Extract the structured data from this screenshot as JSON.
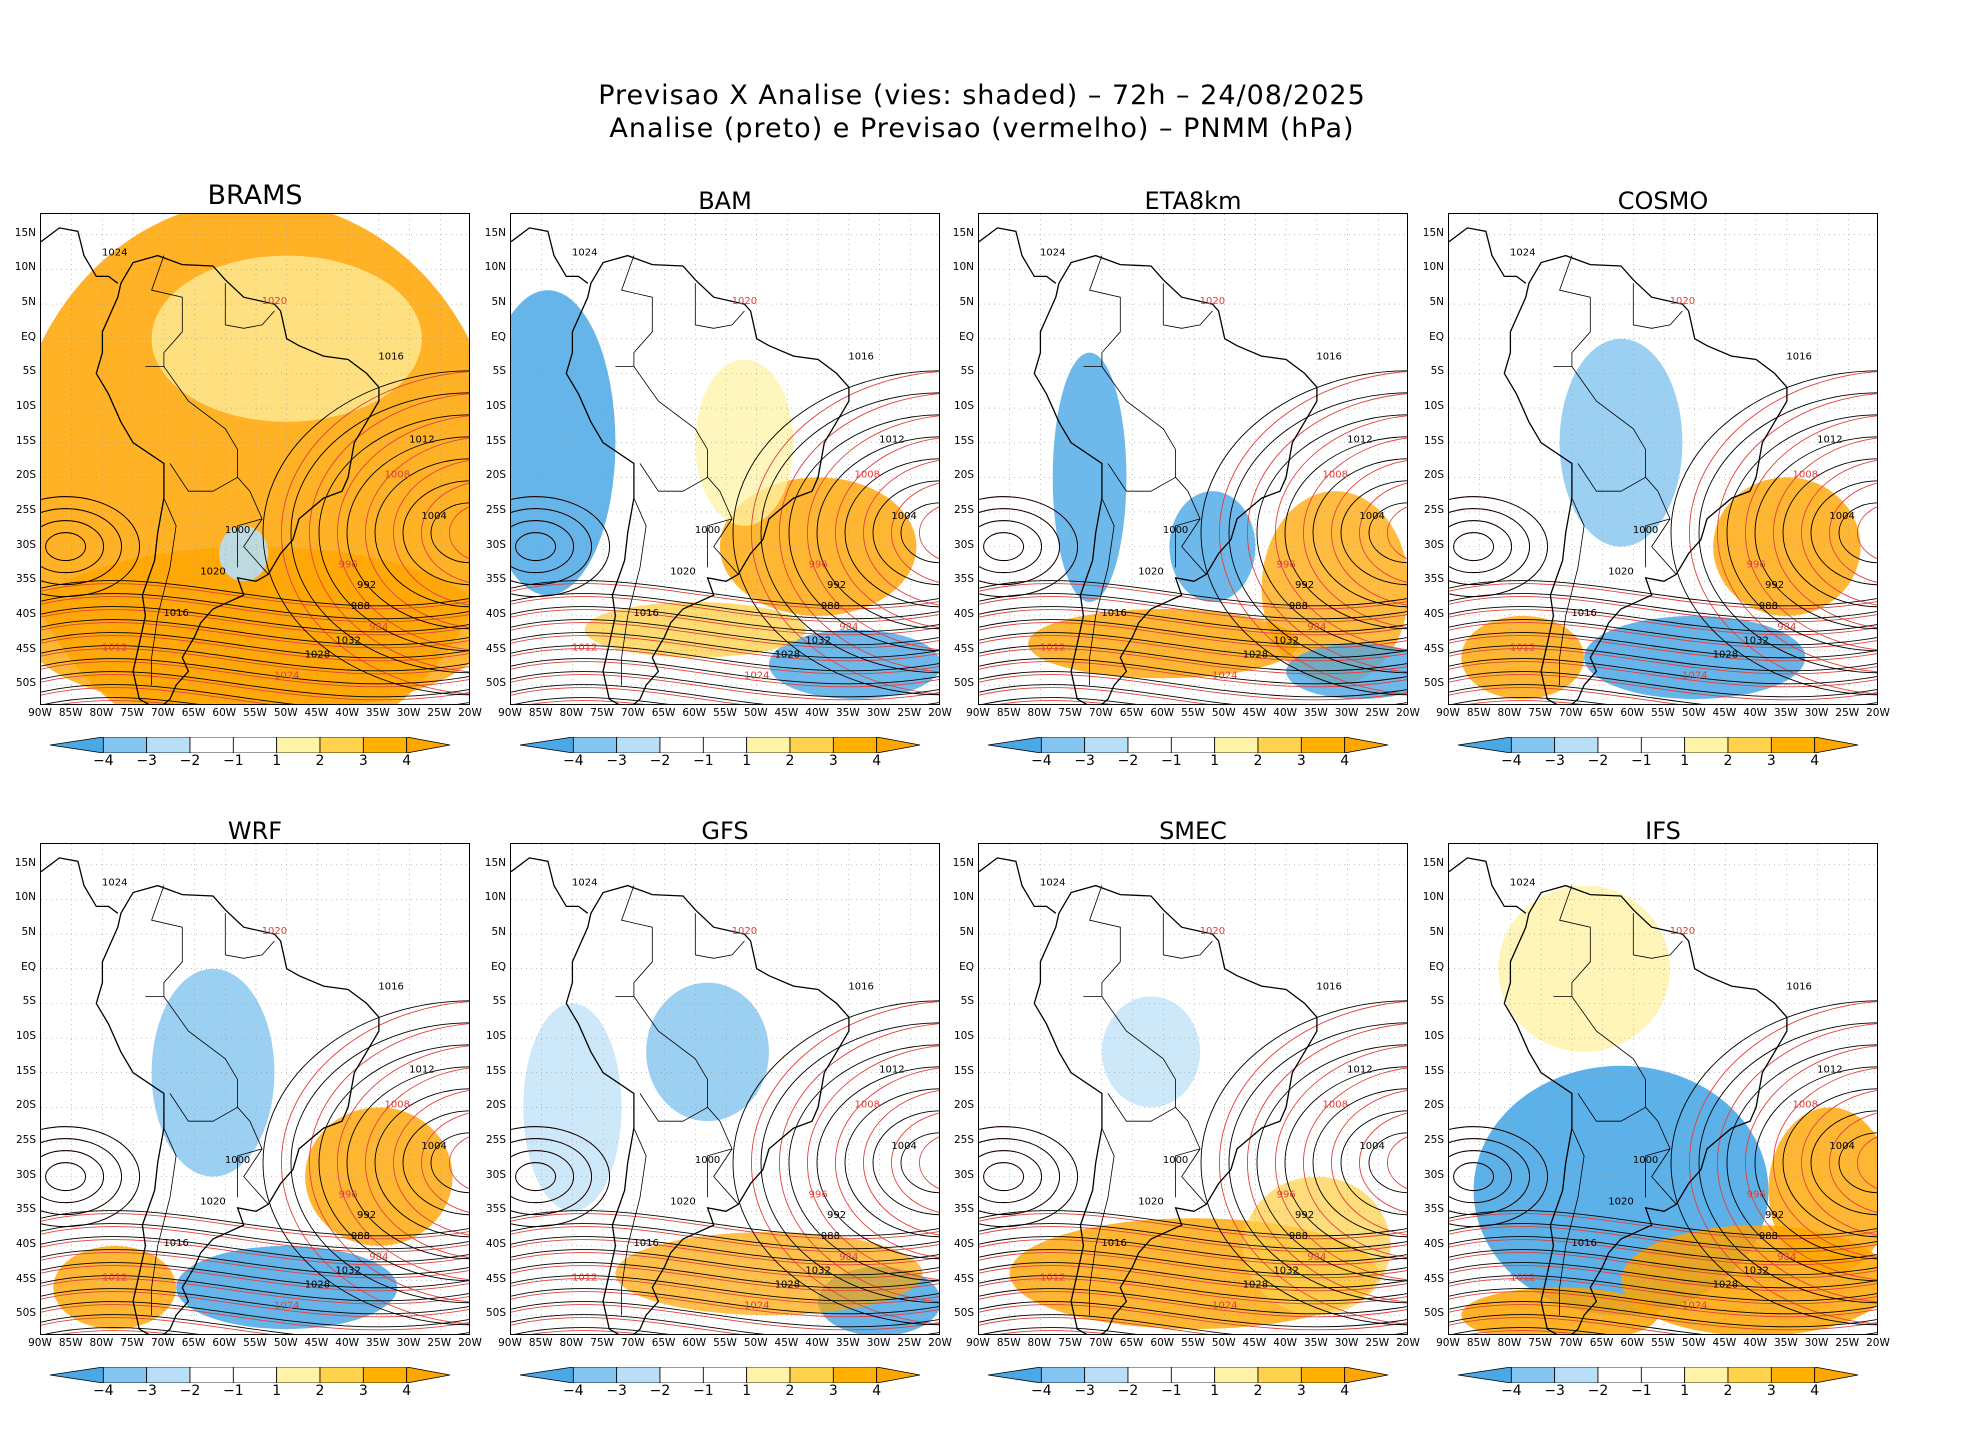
{
  "figure": {
    "title_line1": "Previsao X Analise (vies: shaded) – 72h – 24/08/2025",
    "title_line2": "Analise (preto) e Previsao (vermelho) – PNMM (hPa)"
  },
  "panels": [
    {
      "name": "BRAMS",
      "bias": "warm"
    },
    {
      "name": "BAM",
      "bias": "mixed-cold-west"
    },
    {
      "name": "ETA8km",
      "bias": "mixed-cold-coast"
    },
    {
      "name": "COSMO",
      "bias": "mixed"
    },
    {
      "name": "WRF",
      "bias": "mixed"
    },
    {
      "name": "GFS",
      "bias": "mixed-cold-center"
    },
    {
      "name": "SMEC",
      "bias": "mixed-warm-south"
    },
    {
      "name": "IFS",
      "bias": "strong-cold-south"
    }
  ],
  "lat_labels": [
    "15N",
    "10N",
    "5N",
    "EQ",
    "5S",
    "10S",
    "15S",
    "20S",
    "25S",
    "30S",
    "35S",
    "40S",
    "45S",
    "50S"
  ],
  "lon_labels": [
    "90W",
    "85W",
    "80W",
    "75W",
    "70W",
    "65W",
    "60W",
    "55W",
    "50W",
    "45W",
    "40W",
    "35W",
    "30W",
    "25W",
    "20W"
  ],
  "colorbar": {
    "labels": [
      "−4",
      "−3",
      "−2",
      "−1",
      "1",
      "2",
      "3",
      "4"
    ],
    "colors": [
      "#4aa8e6",
      "#83c4f0",
      "#b8dff7",
      "#ffffff",
      "#ffffff",
      "#fff3a8",
      "#ffd24d",
      "#ffa500"
    ]
  },
  "isobars": {
    "analysis_color": "#000000",
    "forecast_color": "#e0403a",
    "labels": [
      "1032",
      "1028",
      "1024",
      "1020",
      "1016",
      "1012",
      "1008",
      "1004",
      "1000",
      "996",
      "992",
      "988",
      "984"
    ]
  }
}
